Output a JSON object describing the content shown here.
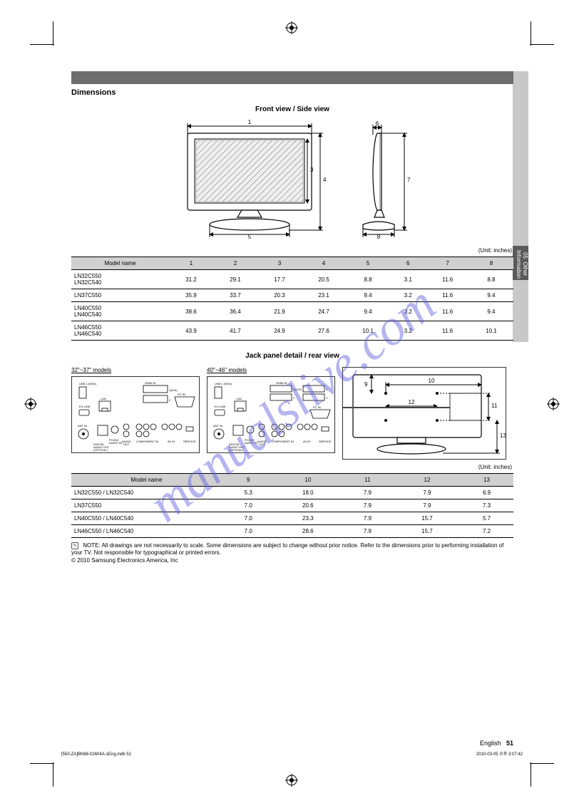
{
  "watermark": "manualslive.com",
  "section": {
    "title": "Dimensions"
  },
  "side_tab": {
    "section_num": "05",
    "section_name": "Other Information"
  },
  "front_view": {
    "title": "Front view / Side view"
  },
  "unit_note": "(Unit: inches)",
  "dims_table": {
    "headers": [
      "Model name",
      "1",
      "2",
      "3",
      "4",
      "5",
      "6",
      "7",
      "8"
    ],
    "rows": [
      {
        "model": "LN32C550\nLN32C540",
        "v": [
          "31.2",
          "29.1",
          "17.7",
          "20.5",
          "8.8",
          "3.1",
          "11.6",
          "8.8"
        ]
      },
      {
        "model": "LN37C550",
        "v": [
          "35.9",
          "33.7",
          "20.3",
          "23.1",
          "9.4",
          "3.2",
          "11.6",
          "9.4"
        ]
      },
      {
        "model": "LN40C550\nLN40C540",
        "v": [
          "38.6",
          "36.4",
          "21.9",
          "24.7",
          "9.4",
          "3.2",
          "11.6",
          "9.4"
        ]
      },
      {
        "model": "LN46C550\nLN46C540",
        "v": [
          "43.9",
          "41.7",
          "24.9",
          "27.6",
          "10.1",
          "3.2",
          "11.6",
          "10.1"
        ]
      }
    ]
  },
  "jack_panel": {
    "heading": "Jack panel detail / rear view",
    "label_32_37": "32\"~37\" models",
    "label_40_46": "40\"~46\" models",
    "ports": {
      "usb": "USB 1 (HDD)",
      "exlink": "EX-LINK",
      "hdmi1": "HDMI IN 1(DVI)",
      "hdmi2": "2",
      "hdmi3": "3",
      "hdmi4": "4",
      "pcin": "PC IN",
      "lan": "LAN",
      "antin": "ANT IN",
      "optical": "DIGITAL AUDIO OUT (OPTICAL)",
      "pcdvi": "PC/DVI AUDIO IN",
      "audio_out": "AUDIO OUT",
      "component": "COMPONENT IN",
      "avin": "AV IN",
      "service": "SERVICE"
    }
  },
  "rear_table": {
    "headers": [
      "Model name",
      "9",
      "10",
      "11",
      "12",
      "13"
    ],
    "rows": [
      {
        "model": "LN32C550 / LN32C540",
        "v": [
          "5.3",
          "18.0",
          "7.9",
          "7.9",
          "6.9"
        ]
      },
      {
        "model": "LN37C550",
        "v": [
          "7.0",
          "20.6",
          "7.9",
          "7.9",
          "7.3"
        ]
      },
      {
        "model": "LN40C550 / LN40C540",
        "v": [
          "7.0",
          "23.3",
          "7.9",
          "15.7",
          "5.7"
        ]
      },
      {
        "model": "LN46C550 / LN46C540",
        "v": [
          "7.0",
          "28.6",
          "7.9",
          "15.7",
          "7.2"
        ]
      }
    ]
  },
  "note_text": "NOTE: All drawings are not necessarily to scale. Some dimensions are subject to change without prior notice. Refer to the dimensions prior to performing installation of your TV. Not responsible for typographical or printed errors.\n© 2010 Samsung Electronics America, Inc",
  "footer": {
    "label": "English",
    "page": "51"
  },
  "gutter": {
    "left": "[550-ZA]BN68-02604A-1Eng.indb   51",
    "right": "2010-03-05   오후 3:07:42"
  },
  "colors": {
    "bar": "#6d6d6d",
    "side_tab_bg": "#c8c8c8",
    "side_tab_dark": "#5a5a5a",
    "table_header_bg": "#d0d0d0",
    "watermark": "rgba(90,90,220,0.45)",
    "screen_fill": "#efefef"
  }
}
